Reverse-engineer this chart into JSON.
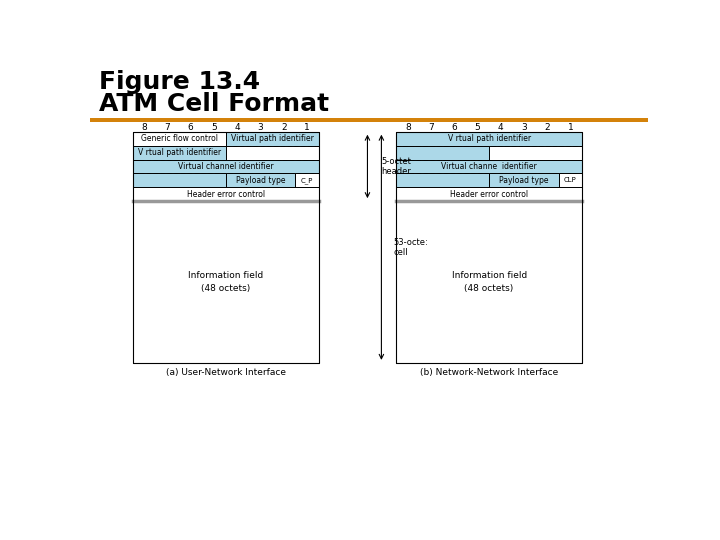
{
  "title_line1": "Figure 13.4",
  "title_line2": "ATM Cell Format",
  "title_color": "#000000",
  "orange_bar_color": "#D4820A",
  "light_blue": "#ACD8E8",
  "white": "#FFFFFF",
  "border_color": "#000000",
  "subtitle_a": "(a) User-Network Interface",
  "subtitle_b": "(b) Network-Network Interface",
  "label_5octet": "5-octet\nheader",
  "label_53octet": "53-octe:\ncell",
  "bit_labels": [
    "8",
    "7",
    "6",
    "5",
    "4",
    "3",
    "2",
    "1"
  ]
}
